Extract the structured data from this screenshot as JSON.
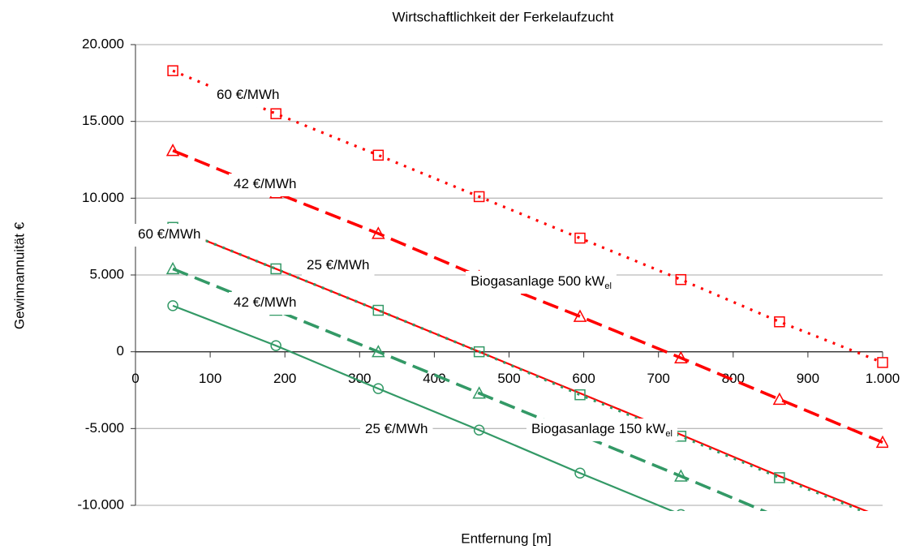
{
  "chart_data": {
    "type": "line",
    "title": "Wirtschaftlichkeit der Ferkelaufzucht",
    "xlabel": "Entfernung [m]",
    "ylabel": "Gewinnannuität   €",
    "xlim": [
      0,
      1000
    ],
    "ylim": [
      -10000,
      20000
    ],
    "xticks": [
      0,
      100,
      200,
      300,
      400,
      500,
      600,
      700,
      800,
      900,
      {
        "value": 1000,
        "label": "1.000"
      }
    ],
    "yticks": [
      {
        "value": 20000,
        "label": "20.000"
      },
      {
        "value": 15000,
        "label": "15.000"
      },
      {
        "value": 10000,
        "label": "10.000"
      },
      {
        "value": 5000,
        "label": "5.000"
      },
      0,
      {
        "value": -5000,
        "label": "-5.000"
      },
      {
        "value": -10000,
        "label": "-10.000"
      }
    ],
    "grid": true,
    "series": [
      {
        "color": "#ff0000",
        "style": "dotted",
        "marker": "square",
        "x": [
          50,
          188,
          325,
          460,
          595,
          730,
          862,
          1000
        ],
        "values": [
          18300,
          15500,
          12800,
          10100,
          7400,
          4700,
          1950,
          -700
        ]
      },
      {
        "color": "#ff0000",
        "style": "dashed",
        "marker": "triangle",
        "x": [
          50,
          188,
          325,
          460,
          595,
          730,
          862,
          1000
        ],
        "values": [
          13100,
          10350,
          7700,
          4900,
          2300,
          -400,
          -3100,
          -5900
        ]
      },
      {
        "color": "#ff0000",
        "style": "solid",
        "marker": "none",
        "x": [
          50,
          188,
          325,
          460,
          595,
          730,
          862,
          1000
        ],
        "values": [
          8100,
          5400,
          2700,
          0,
          -2700,
          -5400,
          -8100,
          -10800
        ]
      },
      {
        "color": "#339966",
        "style": "dotted",
        "marker": "square",
        "x": [
          50,
          188,
          325,
          460,
          595,
          730,
          862,
          1000
        ],
        "values": [
          8100,
          5400,
          2700,
          0,
          -2800,
          -5500,
          -8200,
          -10900
        ]
      },
      {
        "color": "#339966",
        "style": "dashed",
        "marker": "triangle",
        "x": [
          50,
          188,
          325,
          460,
          595,
          730,
          862
        ],
        "values": [
          5400,
          2700,
          0,
          -2700,
          -5400,
          -8100,
          -10800
        ]
      },
      {
        "color": "#339966",
        "style": "solid",
        "marker": "circle",
        "x": [
          50,
          188,
          325,
          460,
          595,
          730
        ],
        "values": [
          3000,
          400,
          -2400,
          -5100,
          -7900,
          -10600
        ]
      }
    ],
    "annotations": [
      {
        "text": "60 €/MWh"
      },
      {
        "text": "42 €/MWh"
      },
      {
        "text": "60 €/MWh"
      },
      {
        "text": "25 €/MWh"
      },
      {
        "text": "Biogasanlage 500 kW",
        "sub": "el"
      },
      {
        "text": "42 €/MWh"
      },
      {
        "text": "25 €/MWh"
      },
      {
        "text": "Biogasanlage 150 kW",
        "sub": "el"
      }
    ]
  }
}
